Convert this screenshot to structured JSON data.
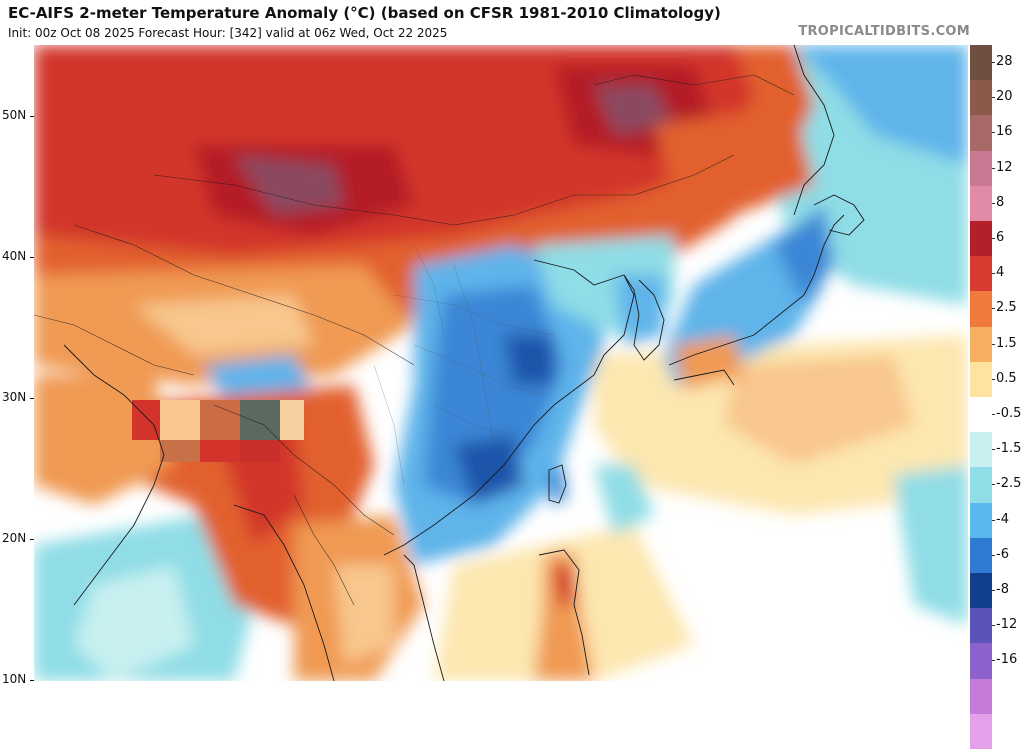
{
  "header": {
    "title": "EC-AIFS 2-meter Temperature Anomaly (°C) (based on CFSR 1981-2010 Climatology)",
    "subtitle": "Init: 00z Oct 08 2025   Forecast Hour: [342]   valid at 06z Wed, Oct 22 2025",
    "brand": "TROPICALTIDBITS.COM"
  },
  "map": {
    "latitude_labels": [
      "50N",
      "40N",
      "30N",
      "20N",
      "10N"
    ],
    "palette": {
      "deep_red": "#b41e28",
      "red": "#d2342c",
      "orange_red": "#e2602e",
      "orange": "#f09a52",
      "light_orange": "#f8c78d",
      "pale_yellow": "#fde7b0",
      "white": "#ffffff",
      "pale_cyan": "#c8f0f0",
      "cyan": "#8fdde6",
      "light_blue": "#5fb4ea",
      "blue": "#3a86d6",
      "dark_blue": "#1c55aa",
      "purple_red": "#8a4a60"
    }
  },
  "colorbar": {
    "labels": [
      "28",
      "20",
      "16",
      "12",
      "8",
      "6",
      "4",
      "2.5",
      "1.5",
      "0.5",
      "-0.5",
      "-1.5",
      "-2.5",
      "-4",
      "-6",
      "-8",
      "-12",
      "-16"
    ],
    "colors": [
      "#6e5040",
      "#8a5a4a",
      "#a86a68",
      "#c97a92",
      "#e08aa8",
      "#b4202a",
      "#d63c32",
      "#f07a3c",
      "#f7b060",
      "#fde2a0",
      "#ffffff",
      "#c8f0f0",
      "#8fdde6",
      "#5ab8ee",
      "#2f7ad2",
      "#123f8c",
      "#5a54b8",
      "#8c62cc",
      "#c47ad8",
      "#e4a0e8"
    ]
  }
}
